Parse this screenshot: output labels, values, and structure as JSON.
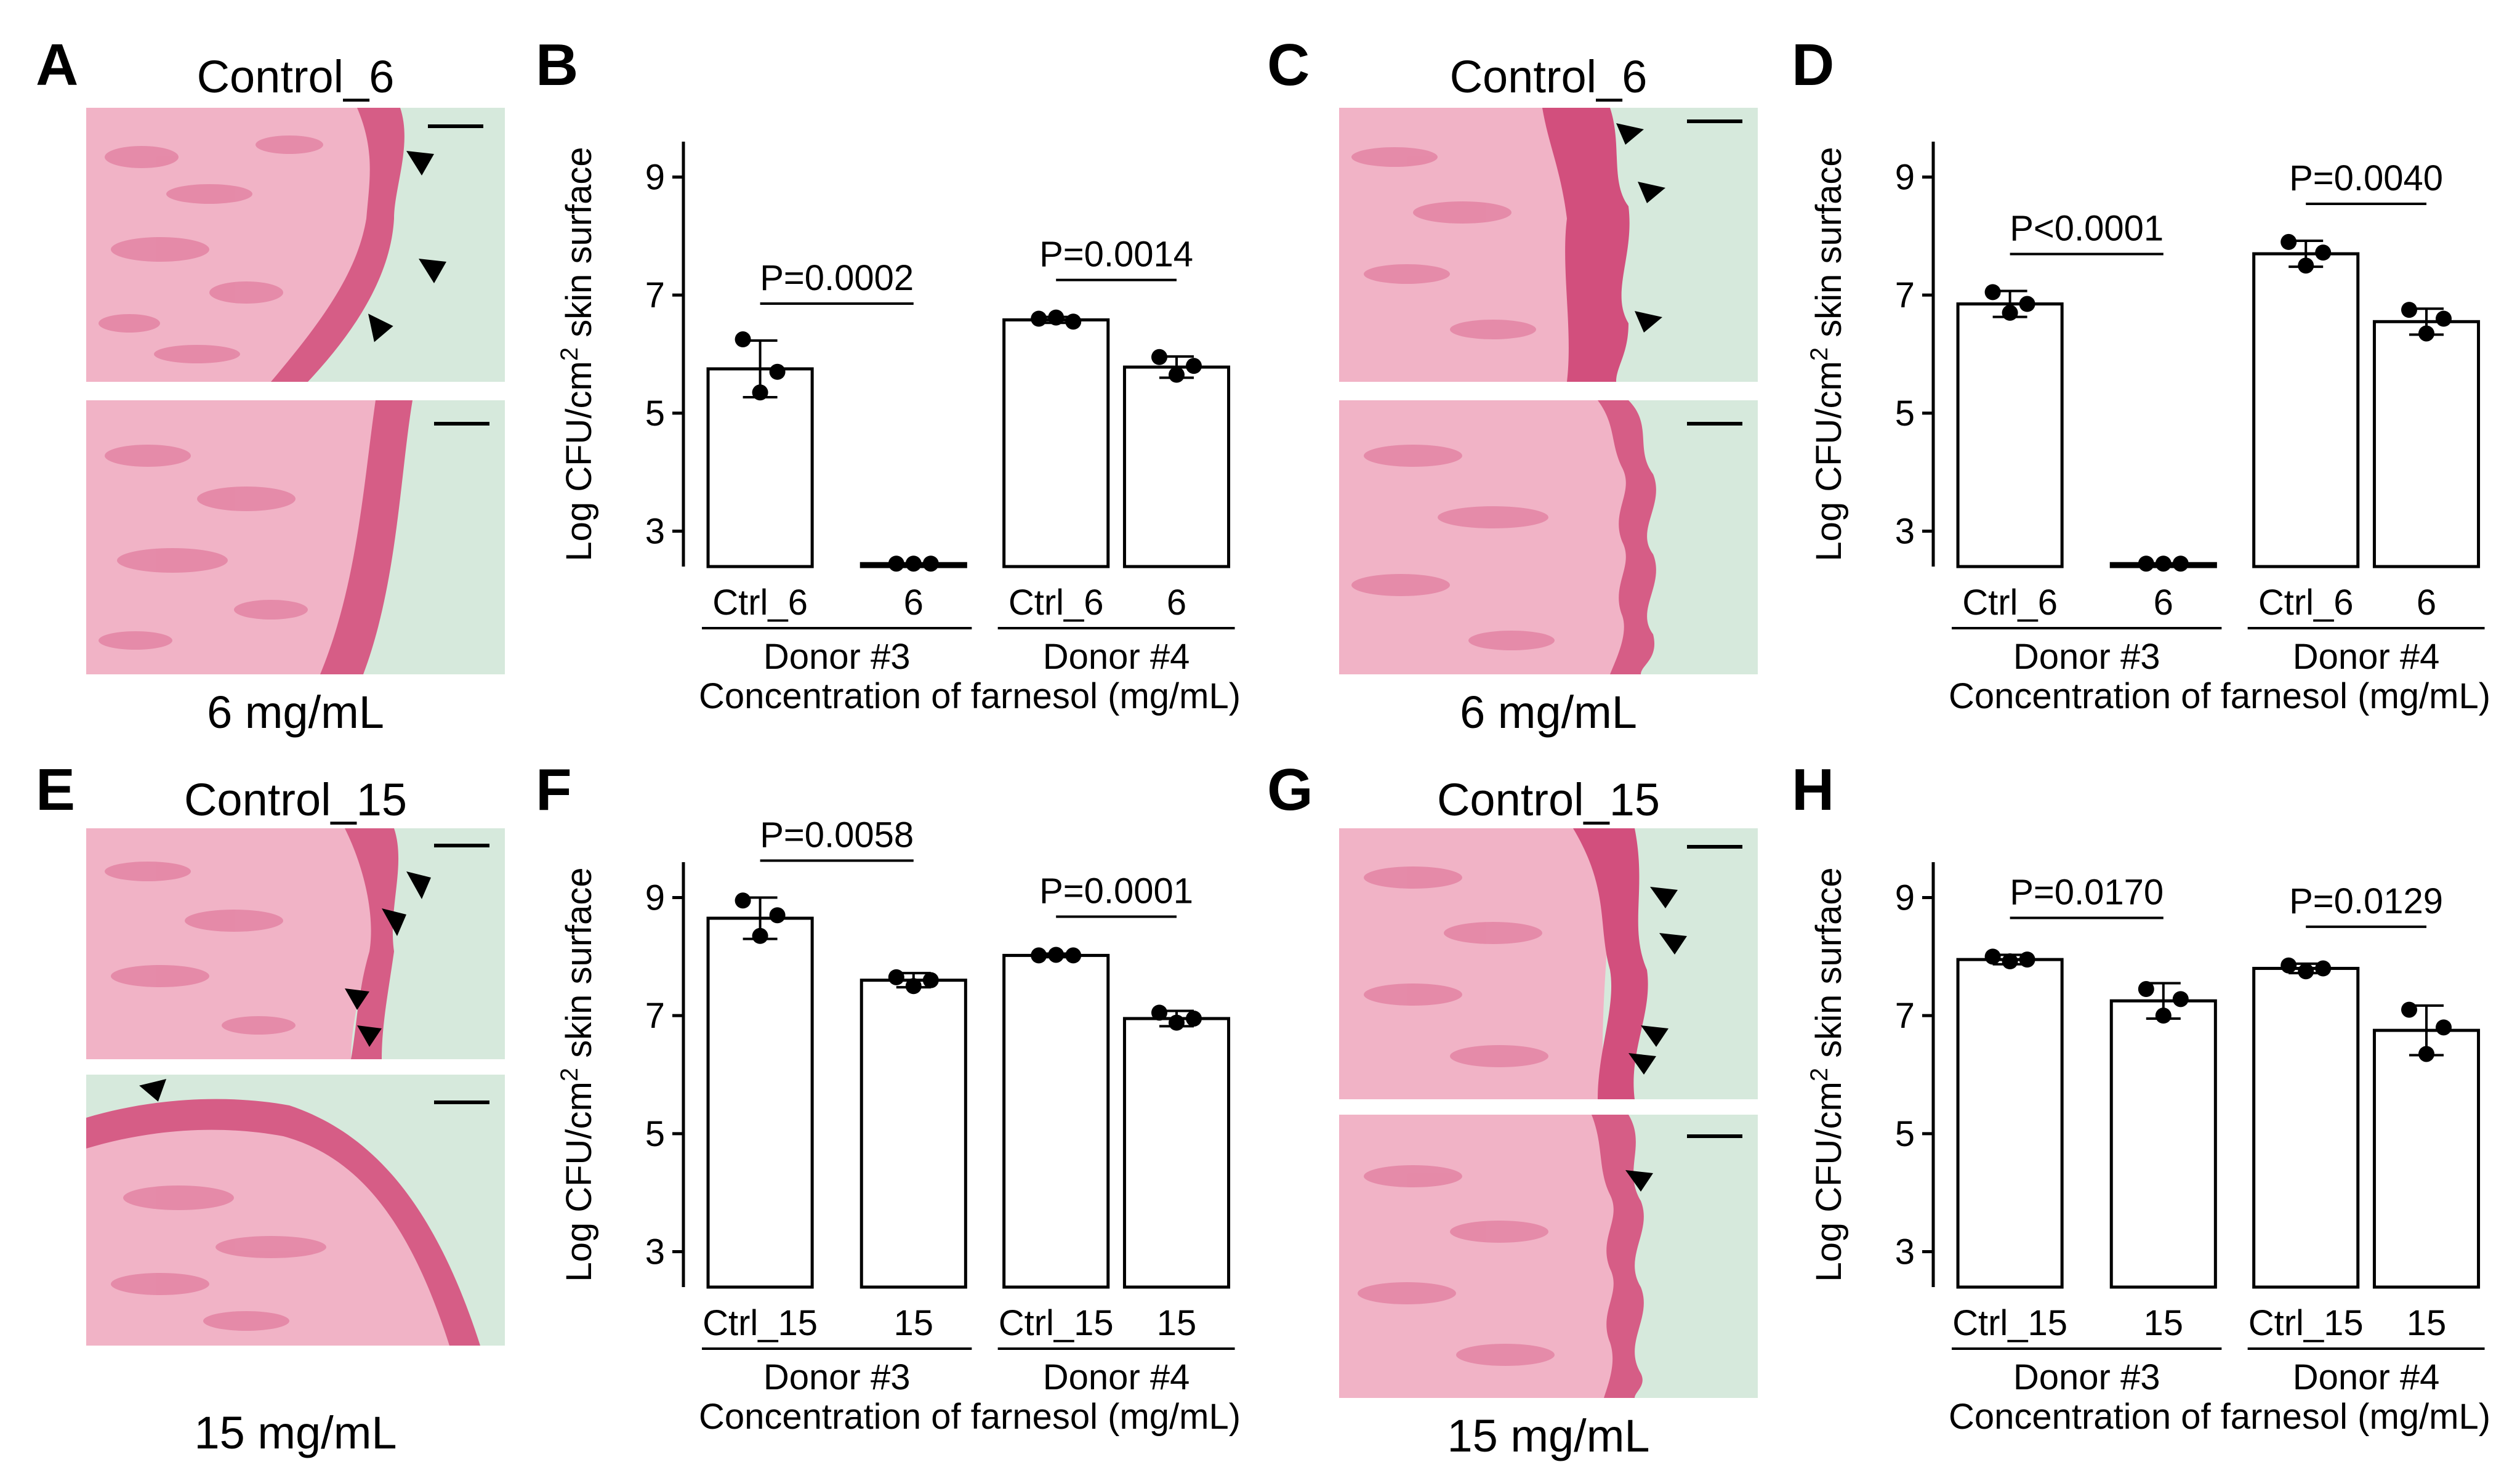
{
  "figure": {
    "panels": {
      "A": {
        "label": "A",
        "top_caption": "Control_6",
        "bottom_caption": "6 mg/mL"
      },
      "C": {
        "label": "C",
        "top_caption": "Control_6",
        "bottom_caption": "6 mg/mL"
      },
      "E": {
        "label": "E",
        "top_caption": "Control_15",
        "bottom_caption": "15 mg/mL"
      },
      "G": {
        "label": "G",
        "top_caption": "Control_15",
        "bottom_caption": "15 mg/mL"
      }
    },
    "colors": {
      "tissue": "#e98aa6",
      "tissue_dark": "#cf4f7a",
      "dermis": "#f2b9cc",
      "background_slide": "#d9ebe0",
      "arrowhead": "#000000"
    }
  },
  "chart_data": [
    {
      "panel": "B",
      "type": "bar",
      "ylabel": "Log CFU/cm² skin surface",
      "ylabel_main": "Log CFU/cm",
      "ylabel_sup": "2",
      "ylabel_tail": " skin surface",
      "ylim": [
        2.4,
        9.6
      ],
      "yticks": [
        "3",
        "5",
        "7",
        "9"
      ],
      "categories": [
        "Ctrl_6",
        "6",
        "Ctrl_6",
        "6"
      ],
      "groups": [
        "Donor #3",
        "Donor #4"
      ],
      "xlabel": "Concentration of farnesol (mg/mL)",
      "values": [
        5.75,
        2.45,
        6.58,
        5.78
      ],
      "errors": [
        0.48,
        0.0,
        0.05,
        0.18
      ],
      "points": [
        [
          6.25,
          5.35,
          5.7
        ],
        [
          2.45,
          2.45,
          2.45
        ],
        [
          6.6,
          6.62,
          6.55
        ],
        [
          5.95,
          5.65,
          5.8
        ]
      ],
      "pvalues": [
        {
          "text": "P=0.0002",
          "group": 0
        },
        {
          "text": "P=0.0014",
          "group": 1
        }
      ]
    },
    {
      "panel": "D",
      "type": "bar",
      "ylabel": "Log CFU/cm² skin surface",
      "ylabel_main": "Log CFU/cm",
      "ylabel_sup": "2",
      "ylabel_tail": " skin surface",
      "ylim": [
        2.4,
        9.6
      ],
      "yticks": [
        "3",
        "5",
        "7",
        "9"
      ],
      "categories": [
        "Ctrl_6",
        "6",
        "Ctrl_6",
        "6"
      ],
      "groups": [
        "Donor #3",
        "Donor #4"
      ],
      "xlabel": "Concentration of farnesol (mg/mL)",
      "values": [
        6.85,
        2.45,
        7.7,
        6.55
      ],
      "errors": [
        0.22,
        0.0,
        0.22,
        0.22
      ],
      "points": [
        [
          7.05,
          6.7,
          6.85
        ],
        [
          2.45,
          2.45,
          2.45
        ],
        [
          7.9,
          7.5,
          7.72
        ],
        [
          6.75,
          6.35,
          6.6
        ]
      ],
      "pvalues": [
        {
          "text": "P<0.0001",
          "group": 0
        },
        {
          "text": "P=0.0040",
          "group": 1
        }
      ]
    },
    {
      "panel": "F",
      "type": "bar",
      "ylabel": "Log CFU/cm² skin surface",
      "ylabel_main": "Log CFU/cm",
      "ylabel_sup": "2",
      "ylabel_tail": " skin surface",
      "ylim": [
        2.4,
        9.6
      ],
      "yticks": [
        "3",
        "5",
        "7",
        "9"
      ],
      "categories": [
        "Ctrl_15",
        "15",
        "Ctrl_15",
        "15"
      ],
      "groups": [
        "Donor #3",
        "Donor #4"
      ],
      "xlabel": "Concentration of farnesol (mg/mL)",
      "values": [
        8.65,
        7.6,
        8.02,
        6.95
      ],
      "errors": [
        0.35,
        0.12,
        0.03,
        0.13
      ],
      "points": [
        [
          8.95,
          8.35,
          8.7
        ],
        [
          7.65,
          7.5,
          7.6
        ],
        [
          8.02,
          8.03,
          8.02
        ],
        [
          7.05,
          6.88,
          6.95
        ]
      ],
      "pvalues": [
        {
          "text": "P=0.0058",
          "group": 0
        },
        {
          "text": "P=0.0001",
          "group": 1
        }
      ]
    },
    {
      "panel": "H",
      "type": "bar",
      "ylabel": "Log CFU/cm² skin surface",
      "ylabel_main": "Log CFU/cm",
      "ylabel_sup": "2",
      "ylabel_tail": " skin surface",
      "ylim": [
        2.4,
        9.6
      ],
      "yticks": [
        "3",
        "5",
        "7",
        "9"
      ],
      "categories": [
        "Ctrl_15",
        "15",
        "Ctrl_15",
        "15"
      ],
      "groups": [
        "Donor #3",
        "Donor #4"
      ],
      "xlabel": "Concentration of farnesol (mg/mL)",
      "values": [
        7.95,
        7.25,
        7.8,
        6.75
      ],
      "errors": [
        0.08,
        0.3,
        0.08,
        0.42
      ],
      "points": [
        [
          8.0,
          7.92,
          7.95
        ],
        [
          7.45,
          7.0,
          7.28
        ],
        [
          7.85,
          7.75,
          7.8
        ],
        [
          7.1,
          6.35,
          6.8
        ]
      ],
      "pvalues": [
        {
          "text": "P=0.0170",
          "group": 0
        },
        {
          "text": "P=0.0129",
          "group": 1
        }
      ]
    }
  ]
}
